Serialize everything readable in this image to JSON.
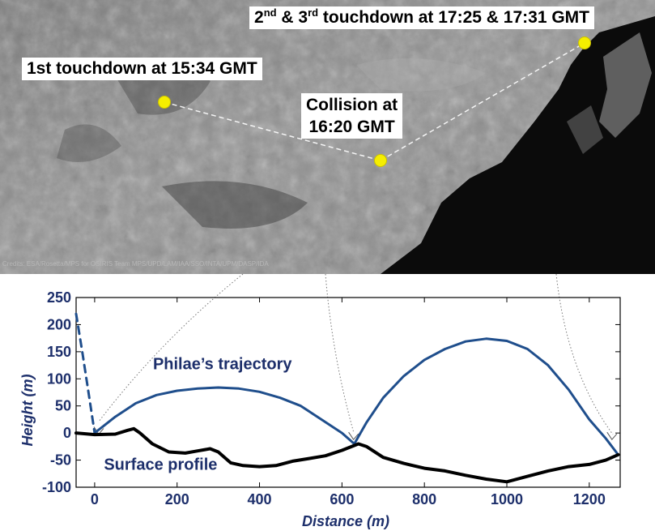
{
  "photo": {
    "label_first": "1st touchdown at 15:34 GMT",
    "label_collision_line1": "Collision at",
    "label_collision_line2": "16:20 GMT",
    "label_second_n1": "2",
    "label_second_sup1": "nd",
    "label_second_mid": " & 3",
    "label_second_sup2": "rd",
    "label_second_rest": " touchdown at 17:25 & 17:31 GMT",
    "credit": "Credits: ESA/Rosetta/MPS for OSIRIS Team MPS/UPD/LAM/IAA/SSO/INTA/UPM/DASP/IDA",
    "marker_color": "#f5ee00"
  },
  "chart_data": {
    "type": "line",
    "title": "",
    "xlabel": "Distance (m)",
    "ylabel": "Height (m)",
    "xlim": [
      -45,
      1275
    ],
    "ylim": [
      -100,
      250
    ],
    "xticks": [
      0,
      200,
      400,
      600,
      800,
      1000,
      1200
    ],
    "yticks": [
      -100,
      -50,
      0,
      50,
      100,
      150,
      200,
      250
    ],
    "grid": false,
    "label_color": "#1d2f6b",
    "series": [
      {
        "name": "Philae's trajectory",
        "color": "#1f4e8c",
        "style": "solid",
        "points": [
          [
            0,
            0
          ],
          [
            50,
            30
          ],
          [
            100,
            55
          ],
          [
            150,
            70
          ],
          [
            200,
            78
          ],
          [
            250,
            82
          ],
          [
            300,
            84
          ],
          [
            350,
            82
          ],
          [
            400,
            76
          ],
          [
            450,
            65
          ],
          [
            500,
            50
          ],
          [
            550,
            25
          ],
          [
            600,
            0
          ],
          [
            630,
            -20
          ],
          [
            660,
            20
          ],
          [
            700,
            65
          ],
          [
            750,
            105
          ],
          [
            800,
            135
          ],
          [
            850,
            155
          ],
          [
            900,
            169
          ],
          [
            950,
            174
          ],
          [
            1000,
            170
          ],
          [
            1050,
            155
          ],
          [
            1100,
            125
          ],
          [
            1150,
            80
          ],
          [
            1200,
            25
          ],
          [
            1240,
            -10
          ],
          [
            1270,
            -40
          ]
        ]
      },
      {
        "name": "Philae's trajectory",
        "color": "#1f4e8c",
        "style": "dashed",
        "points": [
          [
            -45,
            220
          ],
          [
            -30,
            150
          ],
          [
            -15,
            75
          ],
          [
            0,
            0
          ]
        ]
      },
      {
        "name": "Surface profile",
        "color": "#000000",
        "style": "solid",
        "points": [
          [
            -45,
            0
          ],
          [
            0,
            -3
          ],
          [
            50,
            -2
          ],
          [
            80,
            5
          ],
          [
            95,
            8
          ],
          [
            110,
            0
          ],
          [
            140,
            -20
          ],
          [
            180,
            -35
          ],
          [
            220,
            -37
          ],
          [
            250,
            -33
          ],
          [
            280,
            -29
          ],
          [
            300,
            -35
          ],
          [
            330,
            -55
          ],
          [
            360,
            -60
          ],
          [
            400,
            -62
          ],
          [
            440,
            -60
          ],
          [
            480,
            -52
          ],
          [
            520,
            -47
          ],
          [
            560,
            -42
          ],
          [
            600,
            -32
          ],
          [
            640,
            -20
          ],
          [
            660,
            -25
          ],
          [
            700,
            -45
          ],
          [
            750,
            -56
          ],
          [
            800,
            -65
          ],
          [
            850,
            -70
          ],
          [
            900,
            -78
          ],
          [
            950,
            -85
          ],
          [
            1000,
            -90
          ],
          [
            1050,
            -80
          ],
          [
            1100,
            -70
          ],
          [
            1150,
            -62
          ],
          [
            1200,
            -58
          ],
          [
            1240,
            -50
          ],
          [
            1270,
            -40
          ]
        ]
      }
    ],
    "annotations": [
      {
        "text": "Philae’s trajectory",
        "x": 310,
        "y": 118,
        "color": "#1d2f6b"
      },
      {
        "text": "Surface profile",
        "x": 160,
        "y": -68,
        "color": "#1d2f6b"
      }
    ]
  }
}
